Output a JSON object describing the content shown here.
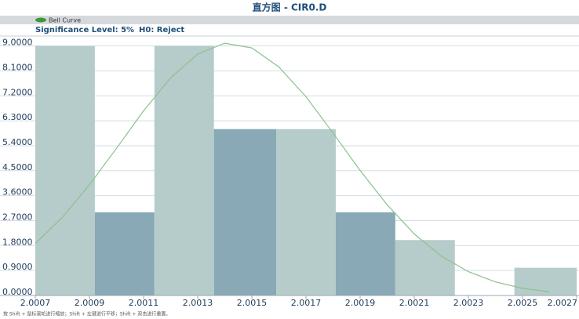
{
  "chart_data": {
    "type": "histogram",
    "title": "直方图 - CIR0.D",
    "significance": "Significance Level: 5%",
    "hypothesis": "H0: Reject",
    "footer": "按 Shift + 鼠标滚轮进行缩放；Shift + 左键进行平移；Shift + 双击进行重置。",
    "bins": [
      2.0007,
      2.00092,
      2.00114,
      2.00136,
      2.00159,
      2.00181,
      2.00203,
      2.00225,
      2.00247,
      2.0027
    ],
    "counts": [
      9,
      3,
      9,
      6,
      6,
      3,
      2,
      0,
      1
    ],
    "colors": [
      "#b5cccb",
      "#88a9b5",
      "#b5cccb",
      "#88a9b5",
      "#b5cccb",
      "#88a9b5",
      "#b5cccb",
      "#88a9b5",
      "#b5cccb"
    ],
    "curve": {
      "name": "Bell Curve",
      "color": "#8cc08c",
      "x": [
        2.0007,
        2.0008,
        2.0009,
        2.001,
        2.0011,
        2.0012,
        2.0013,
        2.0014,
        2.0015,
        2.0016,
        2.0017,
        2.0018,
        2.0019,
        2.002,
        2.0021,
        2.0022,
        2.0023,
        2.0024,
        2.0025,
        2.0026
      ],
      "y": [
        1.87,
        2.82,
        3.99,
        5.31,
        6.66,
        7.85,
        8.71,
        9.1,
        8.93,
        8.24,
        7.17,
        5.86,
        4.51,
        3.27,
        2.22,
        1.42,
        0.86,
        0.49,
        0.26,
        0.13
      ]
    },
    "xlim": [
      2.0007,
      2.0027
    ],
    "xticks": [
      2.0007,
      2.0009,
      2.0011,
      2.0013,
      2.0015,
      2.0017,
      2.0019,
      2.0021,
      2.0023,
      2.0025,
      2.0027
    ],
    "ylim": [
      0,
      9.3
    ],
    "yticks": [
      {
        "value": 0,
        "label": "0.0000"
      },
      {
        "value": 0.9,
        "label": "0.9000"
      },
      {
        "value": 1.8,
        "label": "1.8000"
      },
      {
        "value": 2.7,
        "label": "2.7000"
      },
      {
        "value": 3.6,
        "label": "3.6000"
      },
      {
        "value": 4.5,
        "label": "4.5000"
      },
      {
        "value": 5.4,
        "label": "5.4000"
      },
      {
        "value": 6.3,
        "label": "6.3000"
      },
      {
        "value": 7.2,
        "label": "7.2000"
      },
      {
        "value": 8.1,
        "label": "8.1000"
      },
      {
        "value": 9,
        "label": "9.0000"
      }
    ],
    "grid": true
  }
}
